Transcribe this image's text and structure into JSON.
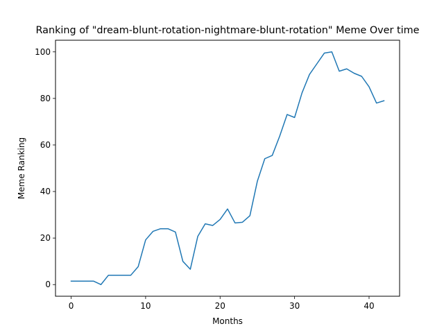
{
  "chart_data": {
    "type": "line",
    "title": "Ranking of \"dream-blunt-rotation-nightmare-blunt-rotation\" Meme Over time",
    "xlabel": "Months",
    "ylabel": "Meme Ranking",
    "xlim": [
      -2.1,
      44.1
    ],
    "ylim": [
      -5,
      105
    ],
    "xticks": [
      0,
      10,
      20,
      30,
      40
    ],
    "yticks": [
      0,
      20,
      40,
      60,
      80,
      100
    ],
    "grid": false,
    "line_color": "#1f77b4",
    "series": [
      {
        "x": [
          0,
          1,
          2,
          3,
          4,
          5,
          6,
          7,
          8,
          9,
          10,
          11,
          12,
          13,
          14,
          15,
          16,
          17,
          18,
          19,
          20,
          21,
          22,
          23,
          24,
          25,
          26,
          27,
          28,
          29,
          30,
          31,
          32,
          33,
          34,
          35,
          36,
          37,
          38,
          39,
          40,
          41,
          42
        ],
        "values": [
          1.5,
          1.5,
          1.5,
          1.5,
          0,
          4,
          4,
          4,
          4,
          7.7,
          19.2,
          22.9,
          24,
          24,
          22.6,
          10,
          6.6,
          20.7,
          26.1,
          25.4,
          28,
          32.5,
          26.5,
          26.8,
          29.6,
          44.4,
          54.1,
          55.5,
          63.8,
          73.1,
          71.8,
          82.4,
          90.3,
          94.9,
          99.5,
          100,
          91.7,
          92.7,
          90.8,
          89.5,
          85,
          78,
          79
        ]
      }
    ]
  }
}
